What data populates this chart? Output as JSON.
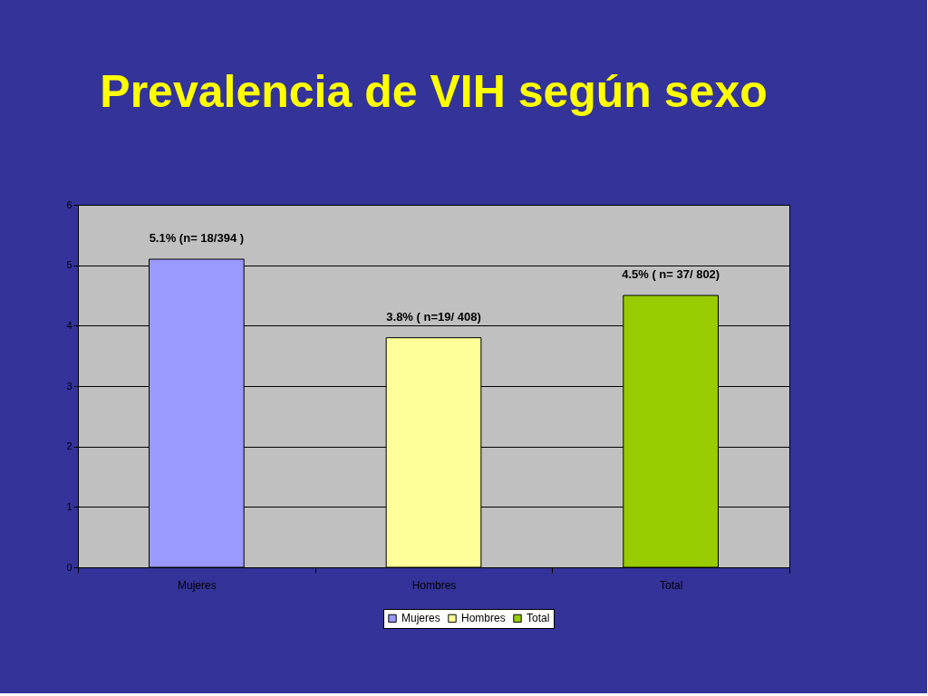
{
  "chart_data": {
    "type": "bar",
    "title": "Prevalencia de VIH según sexo",
    "categories": [
      "Mujeres",
      "Hombres",
      "Total"
    ],
    "series": [
      {
        "name": "Mujeres",
        "color": "#9999ff",
        "values": [
          5.1,
          null,
          null
        ],
        "value_labels": [
          "5.1%  (n= 18/394 )",
          null,
          null
        ]
      },
      {
        "name": "Hombres",
        "color": "#ffff99",
        "values": [
          null,
          3.8,
          null
        ],
        "value_labels": [
          null,
          "3.8%  ( n=19/ 408)",
          null
        ]
      },
      {
        "name": "Total",
        "color": "#99cc00",
        "values": [
          null,
          null,
          4.5
        ],
        "value_labels": [
          null,
          null,
          "4.5% ( n= 37/ 802)"
        ]
      }
    ],
    "ylim": [
      0,
      6
    ],
    "yticks": [
      0,
      1,
      2,
      3,
      4,
      5,
      6
    ],
    "grid": "y",
    "legend": "bottom"
  }
}
